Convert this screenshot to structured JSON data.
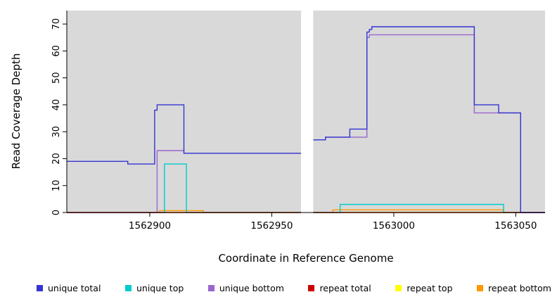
{
  "figure": {
    "plot_bg": "#d9d9d9",
    "background": "#ffffff",
    "xlabel": "Coordinate in Reference Genome",
    "ylabel": "Read Coverage Depth"
  },
  "chart_data": {
    "type": "line",
    "step": true,
    "title": "",
    "xlabel": "Coordinate in Reference Genome",
    "ylabel": "Read Coverage Depth",
    "x_range": [
      1562866,
      1563062
    ],
    "y_range": [
      0,
      75
    ],
    "x_ticks": [
      1562900,
      1562950,
      1563000,
      1563050
    ],
    "y_ticks": [
      0,
      10,
      20,
      30,
      40,
      50,
      60,
      70
    ],
    "gap_region": [
      1562962,
      1562967
    ],
    "plot_bg": "#d9d9d9",
    "grid": false,
    "legend_position": "bottom",
    "series": [
      {
        "name": "unique total",
        "color": "#3434d1",
        "points": [
          [
            1562866,
            19
          ],
          [
            1562891,
            18
          ],
          [
            1562902,
            38
          ],
          [
            1562903,
            40
          ],
          [
            1562914,
            22
          ],
          [
            1562962,
            22
          ],
          [
            1562964,
            27
          ],
          [
            1562972,
            28
          ],
          [
            1562982,
            31
          ],
          [
            1562989,
            67
          ],
          [
            1562990,
            68
          ],
          [
            1562991,
            69
          ],
          [
            1563033,
            40
          ],
          [
            1563043,
            37
          ],
          [
            1563052,
            0
          ],
          [
            1563062,
            0
          ]
        ]
      },
      {
        "name": "unique top",
        "color": "#00cccc",
        "points": [
          [
            1562866,
            0
          ],
          [
            1562906,
            18
          ],
          [
            1562915,
            0
          ],
          [
            1562978,
            3
          ],
          [
            1563045,
            0
          ],
          [
            1563062,
            0
          ]
        ]
      },
      {
        "name": "unique bottom",
        "color": "#9966cc",
        "points": [
          [
            1562866,
            0
          ],
          [
            1562903,
            23
          ],
          [
            1562914,
            22
          ],
          [
            1562962,
            22
          ],
          [
            1562964,
            27
          ],
          [
            1562972,
            28
          ],
          [
            1562989,
            65
          ],
          [
            1562990,
            66
          ],
          [
            1563033,
            37
          ],
          [
            1563052,
            0
          ],
          [
            1563062,
            0
          ]
        ]
      },
      {
        "name": "repeat total",
        "color": "#cc0000",
        "points": [
          [
            1562866,
            0
          ],
          [
            1563062,
            0
          ]
        ]
      },
      {
        "name": "repeat top",
        "color": "#ffff00",
        "points": [
          [
            1562866,
            0
          ],
          [
            1563062,
            0
          ]
        ]
      },
      {
        "name": "repeat bottom",
        "color": "#ff9900",
        "points": [
          [
            1562866,
            0
          ],
          [
            1562904,
            0.7
          ],
          [
            1562922,
            0
          ],
          [
            1562975,
            1
          ],
          [
            1563045,
            0
          ],
          [
            1563062,
            0
          ]
        ]
      }
    ],
    "draw_order": [
      4,
      5,
      1,
      2,
      3,
      0
    ],
    "legend": [
      {
        "label": "unique total",
        "color": "#3434d1"
      },
      {
        "label": "unique top",
        "color": "#00cccc"
      },
      {
        "label": "unique bottom",
        "color": "#9966cc"
      },
      {
        "label": "repeat total",
        "color": "#cc0000"
      },
      {
        "label": "repeat top",
        "color": "#ffff00"
      },
      {
        "label": "repeat bottom",
        "color": "#ff9900"
      }
    ]
  }
}
